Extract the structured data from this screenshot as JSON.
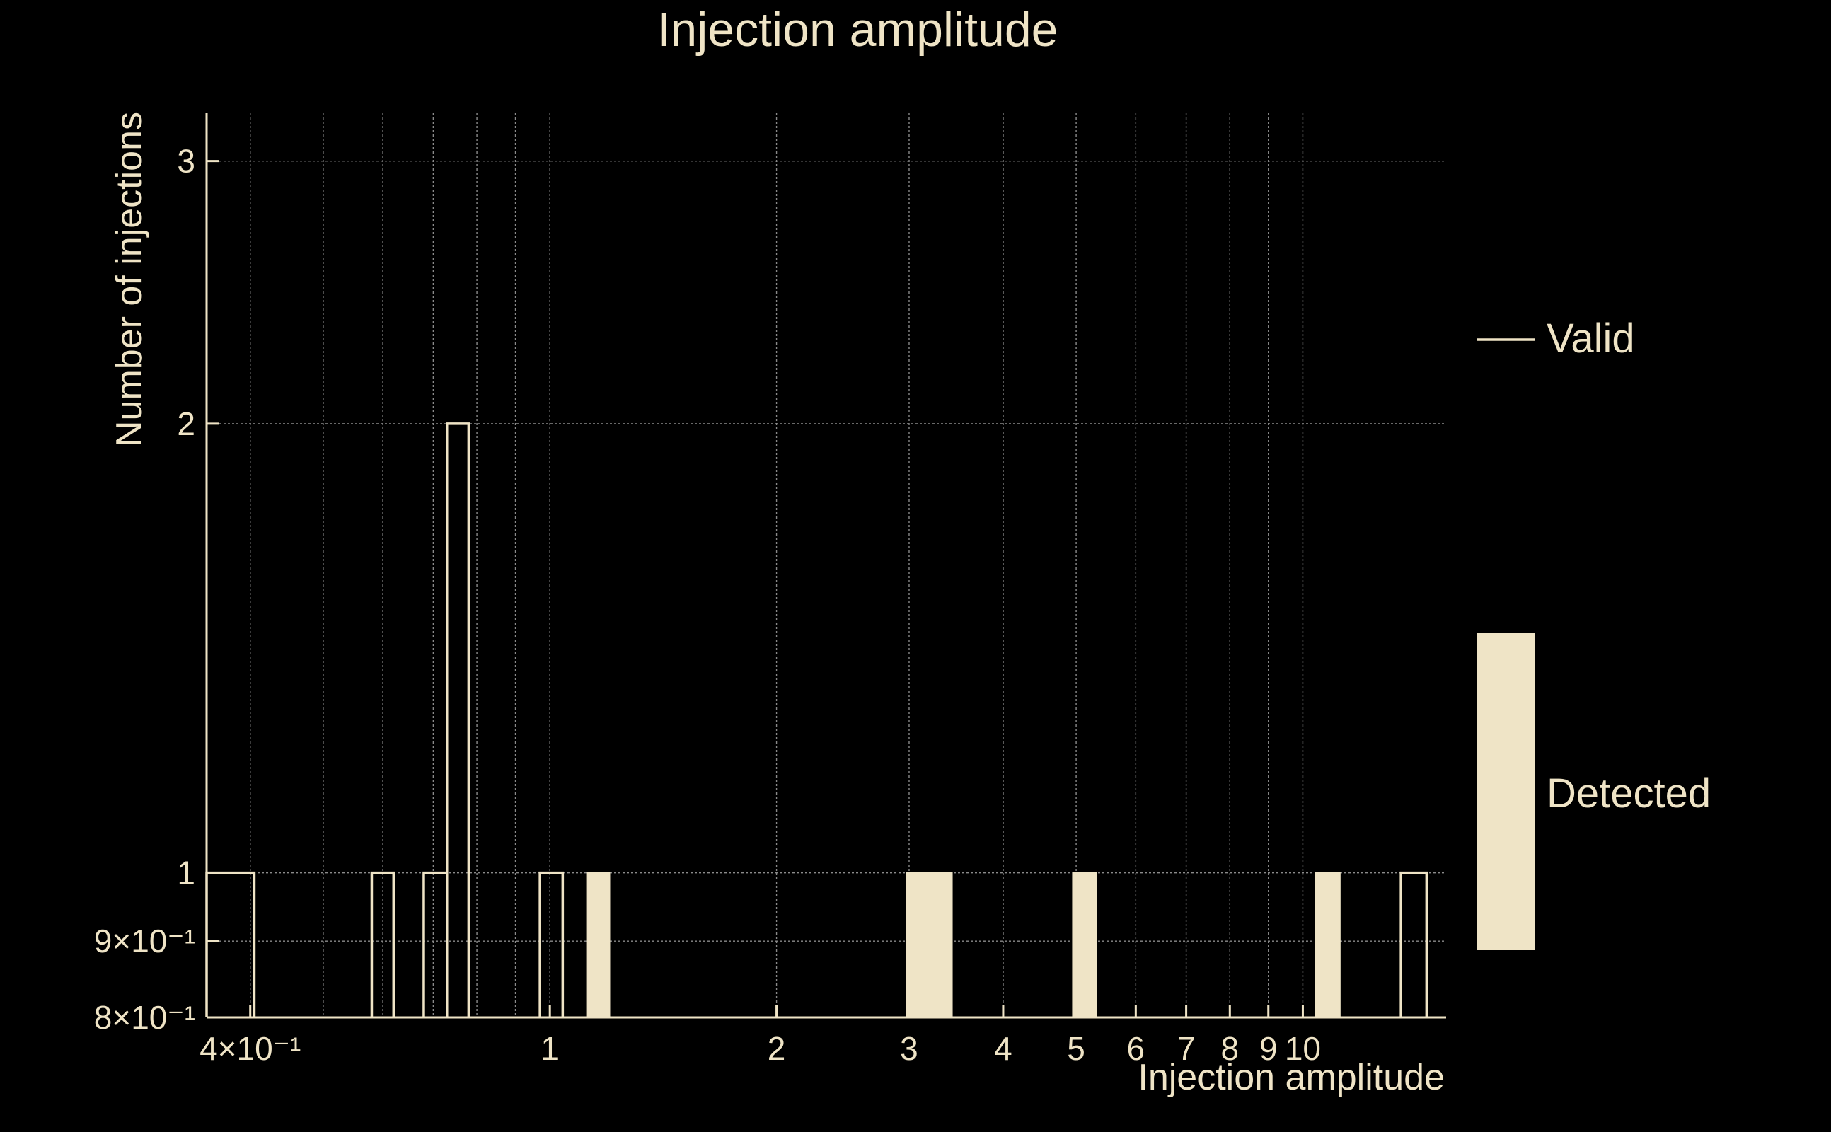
{
  "colors": {
    "background": "#000000",
    "foreground": "#efe4c6",
    "grid": "#8a8a8a"
  },
  "chart_data": {
    "type": "bar",
    "title": "Injection amplitude",
    "xlabel": "Injection amplitude",
    "ylabel": "Number of injections",
    "x_scale": "log",
    "y_scale": "log",
    "xlim": [
      0.35,
      15.5
    ],
    "ylim": [
      0.8,
      3.23
    ],
    "grid": true,
    "legend_position": "right",
    "x_ticks": [
      {
        "value": 0.4,
        "label": "4×10⁻¹"
      },
      {
        "value": 1,
        "label": "1"
      },
      {
        "value": 2,
        "label": "2"
      },
      {
        "value": 3,
        "label": "3"
      },
      {
        "value": 4,
        "label": "4"
      },
      {
        "value": 5,
        "label": "5"
      },
      {
        "value": 6,
        "label": "6"
      },
      {
        "value": 7,
        "label": "7"
      },
      {
        "value": 8,
        "label": "8"
      },
      {
        "value": 9,
        "label": "9"
      },
      {
        "value": 10,
        "label": "10"
      }
    ],
    "x_minor_grid": [
      0.5,
      0.6,
      0.7,
      0.8,
      0.9
    ],
    "y_ticks": [
      {
        "value": 0.8,
        "label": "8×10⁻¹"
      },
      {
        "value": 0.9,
        "label": "9×10⁻¹"
      },
      {
        "value": 1,
        "label": "1"
      },
      {
        "value": 2,
        "label": "2"
      },
      {
        "value": 3,
        "label": "3"
      }
    ],
    "series": [
      {
        "name": "Valid",
        "style": "step-outline",
        "bins": [
          {
            "x0": 0.35,
            "x1": 0.405,
            "count": 1
          },
          {
            "x0": 0.58,
            "x1": 0.62,
            "count": 1
          },
          {
            "x0": 0.68,
            "x1": 0.73,
            "count": 1
          },
          {
            "x0": 0.73,
            "x1": 0.78,
            "count": 2
          },
          {
            "x0": 0.97,
            "x1": 1.04,
            "count": 1
          },
          {
            "x0": 13.5,
            "x1": 14.6,
            "count": 1
          }
        ]
      },
      {
        "name": "Detected",
        "style": "filled",
        "bins": [
          {
            "x0": 1.12,
            "x1": 1.2,
            "count": 1
          },
          {
            "x0": 2.98,
            "x1": 3.42,
            "count": 1
          },
          {
            "x0": 4.95,
            "x1": 5.32,
            "count": 1
          },
          {
            "x0": 10.4,
            "x1": 11.2,
            "count": 1
          }
        ]
      }
    ]
  }
}
